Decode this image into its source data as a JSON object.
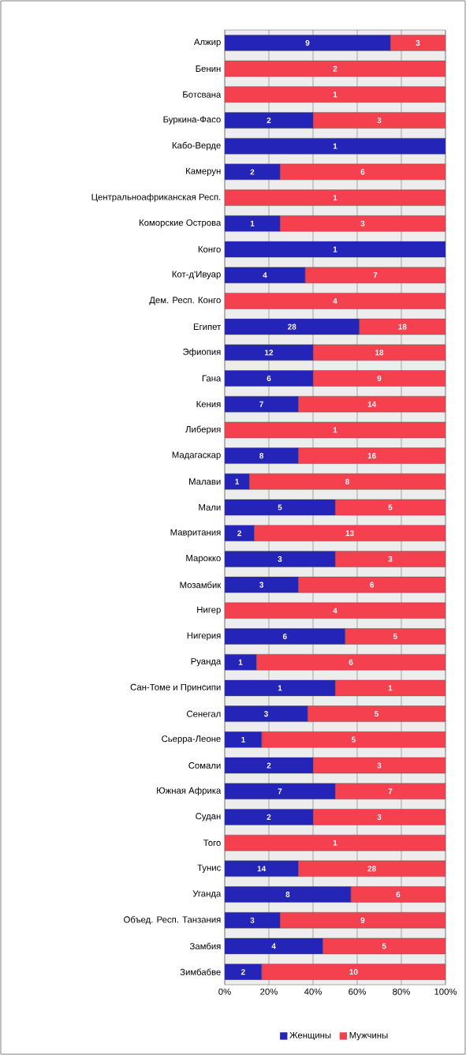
{
  "chart_data": {
    "type": "bar",
    "orientation": "horizontal",
    "stacked": true,
    "categories": [
      "Алжир",
      "Бенин",
      "Ботсвана",
      "Буркина-Фасо",
      "Кабо-Верде",
      "Камерун",
      "Центральноафриканская Респ.",
      "Коморские Острова",
      "Конго",
      "Кот-д'Ивуар",
      "Дем. Респ. Конго",
      "Египет",
      "Эфиопия",
      "Гана",
      "Кения",
      "Либерия",
      "Мадагаскар",
      "Малави",
      "Мали",
      "Мавритания",
      "Марокко",
      "Мозамбик",
      "Нигер",
      "Нигерия",
      "Руанда",
      "Сан-Томе и Принсипи",
      "Сенегал",
      "Сьерра-Леоне",
      "Сомали",
      "Южная Африка",
      "Судан",
      "Того",
      "Тунис",
      "Уганда",
      "Объед. Респ. Танзания",
      "Замбия",
      "Зимбабве"
    ],
    "series": [
      {
        "name": "Женщины",
        "color": "#2424b8",
        "values": [
          75,
          0,
          0,
          40,
          100,
          25,
          0,
          25,
          100,
          36.4,
          0,
          60.9,
          40,
          40,
          33.3,
          0,
          33.3,
          11.1,
          50,
          13.3,
          50,
          33.3,
          0,
          54.5,
          14.3,
          50,
          37.5,
          16.7,
          40,
          50,
          40,
          0,
          33.3,
          57.1,
          25,
          44.4,
          16.7
        ]
      },
      {
        "name": "Мужчины",
        "color": "#f5404f",
        "values": [
          25,
          100,
          100,
          60,
          0,
          75,
          100,
          75,
          0,
          63.6,
          100,
          39.1,
          60,
          60,
          66.7,
          100,
          66.7,
          88.9,
          50,
          86.7,
          50,
          66.7,
          100,
          45.5,
          85.7,
          50,
          62.5,
          83.3,
          60,
          50,
          60,
          100,
          66.7,
          42.9,
          75,
          55.6,
          83.3
        ]
      }
    ],
    "annotations": [
      {
        "text": "9",
        "x": 37.5,
        "y": "Алжир"
      },
      {
        "text": "3",
        "x": 87.5,
        "y": "Алжир"
      },
      {
        "text": "2",
        "x": 50,
        "y": "Бенин"
      },
      {
        "text": "1",
        "x": 50,
        "y": "Ботсвана"
      },
      {
        "text": "2",
        "x": 20,
        "y": "Буркина-Фасо"
      },
      {
        "text": "3",
        "x": 70,
        "y": "Буркина-Фасо"
      },
      {
        "text": "1",
        "x": 50,
        "y": "Кабо-Верде"
      },
      {
        "text": "2",
        "x": 12.5,
        "y": "Камерун"
      },
      {
        "text": "6",
        "x": 62.5,
        "y": "Камерун"
      },
      {
        "text": "1",
        "x": 50,
        "y": "Центральноафриканская Респ."
      },
      {
        "text": "1",
        "x": 12.5,
        "y": "Коморские Острова"
      },
      {
        "text": "3",
        "x": 62.5,
        "y": "Коморские Острова"
      },
      {
        "text": "1",
        "x": 50,
        "y": "Конго"
      },
      {
        "text": "4",
        "x": 18.2,
        "y": "Кот-д'Ивуар"
      },
      {
        "text": "7",
        "x": 68.2,
        "y": "Кот-д'Ивуар"
      },
      {
        "text": "4",
        "x": 50,
        "y": "Дем. Респ. Конго"
      },
      {
        "text": "28",
        "x": 30.45,
        "y": "Египет"
      },
      {
        "text": "18",
        "x": 80.45,
        "y": "Египет"
      },
      {
        "text": "12",
        "x": 20,
        "y": "Эфиопия"
      },
      {
        "text": "18",
        "x": 70,
        "y": "Эфиопия"
      },
      {
        "text": "6",
        "x": 20,
        "y": "Гана"
      },
      {
        "text": "9",
        "x": 70,
        "y": "Гана"
      },
      {
        "text": "7",
        "x": 16.65,
        "y": "Кения"
      },
      {
        "text": "14",
        "x": 66.65,
        "y": "Кения"
      },
      {
        "text": "1",
        "x": 50,
        "y": "Либерия"
      },
      {
        "text": "8",
        "x": 16.65,
        "y": "Мадагаскар"
      },
      {
        "text": "16",
        "x": 66.65,
        "y": "Мадагаскар"
      },
      {
        "text": "1",
        "x": 5.55,
        "y": "Малави"
      },
      {
        "text": "8",
        "x": 55.55,
        "y": "Малави"
      },
      {
        "text": "5",
        "x": 25,
        "y": "Мали"
      },
      {
        "text": "5",
        "x": 75,
        "y": "Мали"
      },
      {
        "text": "2",
        "x": 6.65,
        "y": "Мавритания"
      },
      {
        "text": "13",
        "x": 56.65,
        "y": "Мавритания"
      },
      {
        "text": "3",
        "x": 25,
        "y": "Марокко"
      },
      {
        "text": "3",
        "x": 75,
        "y": "Марокко"
      },
      {
        "text": "3",
        "x": 16.65,
        "y": "Мозамбик"
      },
      {
        "text": "6",
        "x": 66.65,
        "y": "Мозамбик"
      },
      {
        "text": "4",
        "x": 50,
        "y": "Нигер"
      },
      {
        "text": "6",
        "x": 27.25,
        "y": "Нигерия"
      },
      {
        "text": "5",
        "x": 77.25,
        "y": "Нигерия"
      },
      {
        "text": "1",
        "x": 7.15,
        "y": "Руанда"
      },
      {
        "text": "6",
        "x": 57.15,
        "y": "Руанда"
      },
      {
        "text": "1",
        "x": 25,
        "y": "Сан-Томе и Принсипи"
      },
      {
        "text": "1",
        "x": 75,
        "y": "Сан-Томе и Принсипи"
      },
      {
        "text": "3",
        "x": 18.75,
        "y": "Сенегал"
      },
      {
        "text": "5",
        "x": 68.75,
        "y": "Сенегал"
      },
      {
        "text": "1",
        "x": 8.35,
        "y": "Сьерра-Леоне"
      },
      {
        "text": "5",
        "x": 58.35,
        "y": "Сьерра-Леоне"
      },
      {
        "text": "2",
        "x": 20,
        "y": "Сомали"
      },
      {
        "text": "3",
        "x": 70,
        "y": "Сомали"
      },
      {
        "text": "7",
        "x": 25,
        "y": "Южная Африка"
      },
      {
        "text": "7",
        "x": 75,
        "y": "Южная Африка"
      },
      {
        "text": "2",
        "x": 20,
        "y": "Судан"
      },
      {
        "text": "3",
        "x": 70,
        "y": "Судан"
      },
      {
        "text": "1",
        "x": 50,
        "y": "Того"
      },
      {
        "text": "14",
        "x": 16.65,
        "y": "Тунис"
      },
      {
        "text": "28",
        "x": 66.65,
        "y": "Тунис"
      },
      {
        "text": "8",
        "x": 28.55,
        "y": "Уганда"
      },
      {
        "text": "6",
        "x": 78.55,
        "y": "Уганда"
      },
      {
        "text": "3",
        "x": 12.5,
        "y": "Объед. Респ. Танзания"
      },
      {
        "text": "9",
        "x": 62.5,
        "y": "Объед. Респ. Танзания"
      },
      {
        "text": "4",
        "x": 22.2,
        "y": "Замбия"
      },
      {
        "text": "5",
        "x": 72.2,
        "y": "Замбия"
      },
      {
        "text": "2",
        "x": 8.35,
        "y": "Зимбабве"
      },
      {
        "text": "10",
        "x": 58.35,
        "y": "Зимбабве"
      }
    ],
    "xlim": [
      0,
      100
    ],
    "xticks": [
      {
        "value": 0,
        "label": "0%"
      },
      {
        "value": 20,
        "label": "20%"
      },
      {
        "value": 40,
        "label": "40%"
      },
      {
        "value": 60,
        "label": "60%"
      },
      {
        "value": 80,
        "label": "80%"
      },
      {
        "value": 100,
        "label": "100%"
      }
    ],
    "grid": "x",
    "legend": "bottom"
  }
}
